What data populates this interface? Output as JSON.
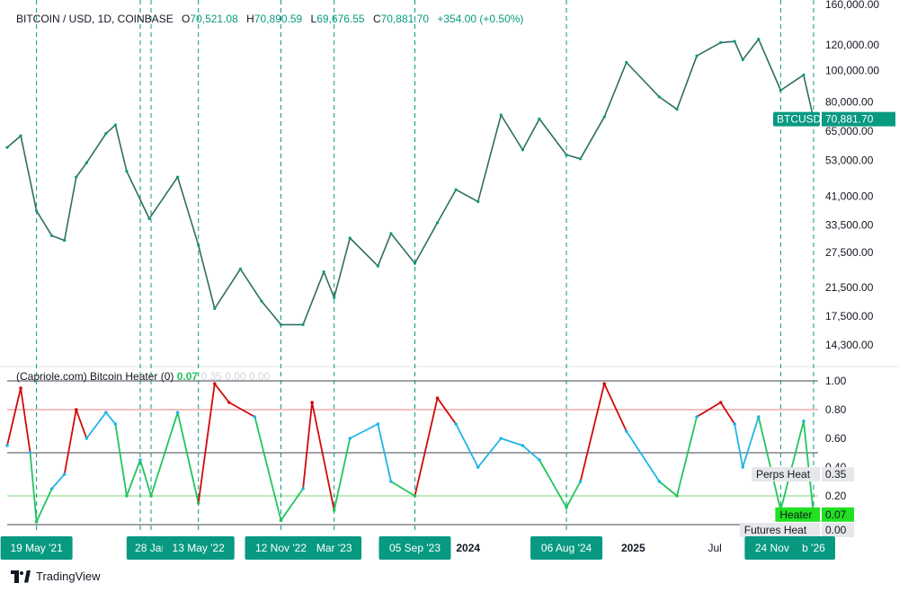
{
  "header": {
    "symbol": "BITCOIN / USD, 1D, COINBASE",
    "o_label": "O",
    "o_value": "70,521.08",
    "h_label": "H",
    "h_value": "70,890.59",
    "l_label": "L",
    "l_value": "69,676.55",
    "c_label": "C",
    "c_value": "70,881.70",
    "change": "+354.00 (+0.50%)"
  },
  "price_tag": {
    "symbol": "BTCUSD",
    "value": "70,881.70"
  },
  "indicator": {
    "title": "(Capriole.com) Bitcoin Heater (0)",
    "v1": "0.07",
    "v2": "0.35",
    "v3": "0.00",
    "v4": "0.00"
  },
  "side_labels": [
    {
      "name": "Perps Heat",
      "value": "0.35"
    },
    {
      "name": "Heater",
      "value": "0.07"
    },
    {
      "name": "Futures Heat",
      "value": "0.00"
    }
  ],
  "footer": {
    "brand": "TradingView"
  },
  "colors": {
    "accent": "#089981",
    "heater": "#21b5e6",
    "hot": "#d10a0a",
    "cold": "#22c55e",
    "grid_line": "#131722",
    "upper_band": "#e06060",
    "lower_band": "#5ec95e"
  },
  "chart_data": [
    {
      "type": "line",
      "title": "BITCOIN / USD, 1D, COINBASE",
      "scale": "log",
      "y_ticks": [
        14300,
        17500,
        21500,
        27500,
        33500,
        41000,
        53000,
        65000,
        80000,
        100000,
        120000,
        160000
      ],
      "y_tick_labels": [
        "14,300.00",
        "17,500.00",
        "21,500.00",
        "27,500.00",
        "33,500.00",
        "41,000.00",
        "53,000.00",
        "65,000.00",
        "80,000.00",
        "100,000.00",
        "120,000.00",
        "160,000.00"
      ],
      "ylim": [
        12500,
        165000
      ],
      "x_range": [
        "2021-03-15",
        "2026-02-15"
      ],
      "series": [
        {
          "name": "BTCUSD close (approx)",
          "points": [
            [
              "2021-03-15",
              58000
            ],
            [
              "2021-04-14",
              63000
            ],
            [
              "2021-05-19",
              37000
            ],
            [
              "2021-06-22",
              31000
            ],
            [
              "2021-07-20",
              30000
            ],
            [
              "2021-08-15",
              47000
            ],
            [
              "2021-09-07",
              52000
            ],
            [
              "2021-10-20",
              64000
            ],
            [
              "2021-11-10",
              68000
            ],
            [
              "2021-12-05",
              49000
            ],
            [
              "2022-01-24",
              35000
            ],
            [
              "2022-03-28",
              47000
            ],
            [
              "2022-05-13",
              29000
            ],
            [
              "2022-06-18",
              18500
            ],
            [
              "2022-08-14",
              24500
            ],
            [
              "2022-09-30",
              19500
            ],
            [
              "2022-11-12",
              16500
            ],
            [
              "2022-12-31",
              16500
            ],
            [
              "2023-02-15",
              24000
            ],
            [
              "2023-03-10",
              20000
            ],
            [
              "2023-04-14",
              30500
            ],
            [
              "2023-06-15",
              25000
            ],
            [
              "2023-07-14",
              31500
            ],
            [
              "2023-09-05",
              25500
            ],
            [
              "2023-10-25",
              34000
            ],
            [
              "2023-12-05",
              43000
            ],
            [
              "2024-01-23",
              39500
            ],
            [
              "2024-03-14",
              73000
            ],
            [
              "2024-05-01",
              57000
            ],
            [
              "2024-06-07",
              71000
            ],
            [
              "2024-08-06",
              55000
            ],
            [
              "2024-09-06",
              53500
            ],
            [
              "2024-10-29",
              72000
            ],
            [
              "2024-12-17",
              106000
            ],
            [
              "2025-02-28",
              83000
            ],
            [
              "2025-04-08",
              76000
            ],
            [
              "2025-05-22",
              111000
            ],
            [
              "2025-07-14",
              122000
            ],
            [
              "2025-08-14",
              123000
            ],
            [
              "2025-09-01",
              108000
            ],
            [
              "2025-10-06",
              125000
            ],
            [
              "2025-11-24",
              87000
            ],
            [
              "2026-01-14",
              97000
            ],
            [
              "2026-02-05",
              70881.7
            ]
          ]
        }
      ]
    },
    {
      "type": "line",
      "title": "(Capriole.com) Bitcoin Heater (0)",
      "ylim": [
        0,
        1.0
      ],
      "y_ticks": [
        0.2,
        0.4,
        0.6,
        0.8,
        1.0
      ],
      "y_tick_labels": [
        "0.20",
        "0.40",
        "0.60",
        "0.80",
        "1.00"
      ],
      "reference_lines": [
        0.0,
        0.2,
        0.5,
        0.8,
        1.0
      ],
      "series": [
        {
          "name": "Heater (approx)",
          "points": [
            [
              "2021-03-15",
              0.55
            ],
            [
              "2021-04-14",
              0.95
            ],
            [
              "2021-05-05",
              0.5
            ],
            [
              "2021-05-19",
              0.02
            ],
            [
              "2021-06-22",
              0.25
            ],
            [
              "2021-07-20",
              0.35
            ],
            [
              "2021-08-15",
              0.8
            ],
            [
              "2021-09-07",
              0.6
            ],
            [
              "2021-10-20",
              0.78
            ],
            [
              "2021-11-10",
              0.7
            ],
            [
              "2021-12-05",
              0.2
            ],
            [
              "2022-01-04",
              0.45
            ],
            [
              "2022-01-28",
              0.2
            ],
            [
              "2022-03-28",
              0.78
            ],
            [
              "2022-05-13",
              0.15
            ],
            [
              "2022-06-18",
              0.98
            ],
            [
              "2022-07-20",
              0.85
            ],
            [
              "2022-09-15",
              0.75
            ],
            [
              "2022-11-12",
              0.03
            ],
            [
              "2022-12-31",
              0.25
            ],
            [
              "2023-01-20",
              0.85
            ],
            [
              "2023-03-10",
              0.1
            ],
            [
              "2023-04-14",
              0.6
            ],
            [
              "2023-06-15",
              0.7
            ],
            [
              "2023-07-14",
              0.3
            ],
            [
              "2023-09-05",
              0.2
            ],
            [
              "2023-10-25",
              0.88
            ],
            [
              "2023-12-05",
              0.7
            ],
            [
              "2024-01-23",
              0.4
            ],
            [
              "2024-03-14",
              0.6
            ],
            [
              "2024-05-01",
              0.55
            ],
            [
              "2024-06-07",
              0.45
            ],
            [
              "2024-08-06",
              0.12
            ],
            [
              "2024-09-06",
              0.3
            ],
            [
              "2024-10-29",
              0.98
            ],
            [
              "2024-12-17",
              0.65
            ],
            [
              "2025-02-28",
              0.3
            ],
            [
              "2025-04-08",
              0.2
            ],
            [
              "2025-05-22",
              0.75
            ],
            [
              "2025-07-14",
              0.85
            ],
            [
              "2025-08-14",
              0.7
            ],
            [
              "2025-09-01",
              0.4
            ],
            [
              "2025-10-06",
              0.75
            ],
            [
              "2025-11-24",
              0.1
            ],
            [
              "2026-01-14",
              0.72
            ],
            [
              "2026-02-05",
              0.07
            ]
          ]
        }
      ]
    }
  ],
  "time_axis": {
    "markers": [
      {
        "date": "2021-05-19",
        "label": "19 May '21"
      },
      {
        "date": "2022-01-04",
        "label": "04"
      },
      {
        "date": "2022-01-28",
        "label": "28 Jan"
      },
      {
        "date": "2022-05-13",
        "label": "13 May '22"
      },
      {
        "date": "2022-11-12",
        "label": "12 Nov '22"
      },
      {
        "date": "2023-03-10",
        "label": "Mar '23"
      },
      {
        "date": "2023-09-05",
        "label": "05 Sep '23"
      },
      {
        "date": "2024-08-06",
        "label": "06 Aug '24"
      },
      {
        "date": "2025-11-24",
        "label": "24 Nov '25"
      },
      {
        "date": "2026-02-05",
        "label": "b '26"
      }
    ],
    "labels": [
      {
        "date": "2024-01-01",
        "label": "2024",
        "bold": true
      },
      {
        "date": "2025-01-01",
        "label": "2025",
        "bold": true
      },
      {
        "date": "2025-07-01",
        "label": "Jul",
        "bold": false
      }
    ]
  }
}
